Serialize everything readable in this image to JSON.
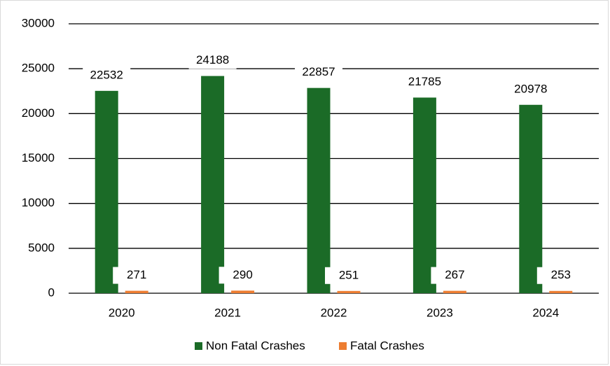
{
  "chart_data": {
    "type": "bar",
    "categories": [
      "2020",
      "2021",
      "2022",
      "2023",
      "2024"
    ],
    "series": [
      {
        "name": "Non Fatal Crashes",
        "color": "#1b6b27",
        "values": [
          22532,
          24188,
          22857,
          21785,
          20978
        ]
      },
      {
        "name": "Fatal Crashes",
        "color": "#ed7d31",
        "values": [
          271,
          290,
          251,
          267,
          253
        ]
      }
    ],
    "ylim": [
      0,
      30000
    ],
    "yticks": [
      0,
      5000,
      10000,
      15000,
      20000,
      25000,
      30000
    ],
    "grid": true,
    "legend": "bottom"
  }
}
